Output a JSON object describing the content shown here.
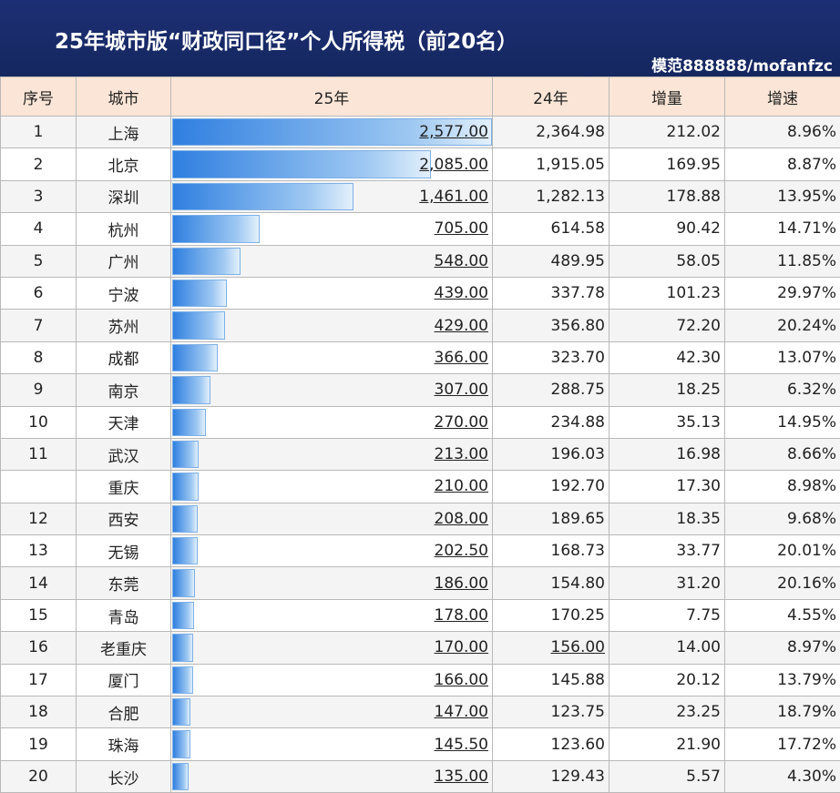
{
  "title": "25年城市版“财政同口径”个人所得税（前20名）",
  "watermark": "模范888888/mofanfzc",
  "headers": {
    "rank": "序号",
    "city": "城市",
    "y25": "25年",
    "y24": "24年",
    "inc": "增量",
    "rate": "增速"
  },
  "colors": {
    "header_band": "#1d2f74",
    "header_row": "#fbe5d6",
    "bar": "#2f7fe0"
  },
  "chart_data": {
    "type": "bar",
    "categories": [
      "上海",
      "北京",
      "深圳",
      "杭州",
      "广州",
      "宁波",
      "苏州",
      "成都",
      "南京",
      "天津",
      "武汉",
      "重庆",
      "西安",
      "无锡",
      "东莞",
      "青岛",
      "老重庆",
      "厦门",
      "合肥",
      "珠海",
      "长沙"
    ],
    "values": [
      2577.0,
      2085.0,
      1461.0,
      705.0,
      548.0,
      439.0,
      429.0,
      366.0,
      307.0,
      270.0,
      213.0,
      210.0,
      208.0,
      202.5,
      186.0,
      178.0,
      170.0,
      166.0,
      147.0,
      145.5,
      135.0
    ],
    "ylim": [
      0,
      2577
    ]
  },
  "rows": [
    {
      "rank": "1",
      "city": "上海",
      "y25": "2,577.00",
      "y24": "2,364.98",
      "inc": "212.02",
      "rate": "8.96%"
    },
    {
      "rank": "2",
      "city": "北京",
      "y25": "2,085.00",
      "y24": "1,915.05",
      "inc": "169.95",
      "rate": "8.87%"
    },
    {
      "rank": "3",
      "city": "深圳",
      "y25": "1,461.00",
      "y24": "1,282.13",
      "inc": "178.88",
      "rate": "13.95%"
    },
    {
      "rank": "4",
      "city": "杭州",
      "y25": "705.00",
      "y24": "614.58",
      "inc": "90.42",
      "rate": "14.71%"
    },
    {
      "rank": "5",
      "city": "广州",
      "y25": "548.00",
      "y24": "489.95",
      "inc": "58.05",
      "rate": "11.85%"
    },
    {
      "rank": "6",
      "city": "宁波",
      "y25": "439.00",
      "y24": "337.78",
      "inc": "101.23",
      "rate": "29.97%"
    },
    {
      "rank": "7",
      "city": "苏州",
      "y25": "429.00",
      "y24": "356.80",
      "inc": "72.20",
      "rate": "20.24%"
    },
    {
      "rank": "8",
      "city": "成都",
      "y25": "366.00",
      "y24": "323.70",
      "inc": "42.30",
      "rate": "13.07%"
    },
    {
      "rank": "9",
      "city": "南京",
      "y25": "307.00",
      "y24": "288.75",
      "inc": "18.25",
      "rate": "6.32%"
    },
    {
      "rank": "10",
      "city": "天津",
      "y25": "270.00",
      "y24": "234.88",
      "inc": "35.13",
      "rate": "14.95%"
    },
    {
      "rank": "11",
      "city": "武汉",
      "y25": "213.00",
      "y24": "196.03",
      "inc": "16.98",
      "rate": "8.66%"
    },
    {
      "rank": "",
      "city": "重庆",
      "y25": "210.00",
      "y24": "192.70",
      "inc": "17.30",
      "rate": "8.98%"
    },
    {
      "rank": "12",
      "city": "西安",
      "y25": "208.00",
      "y24": "189.65",
      "inc": "18.35",
      "rate": "9.68%"
    },
    {
      "rank": "13",
      "city": "无锡",
      "y25": "202.50",
      "y24": "168.73",
      "inc": "33.77",
      "rate": "20.01%"
    },
    {
      "rank": "14",
      "city": "东莞",
      "y25": "186.00",
      "y24": "154.80",
      "inc": "31.20",
      "rate": "20.16%"
    },
    {
      "rank": "15",
      "city": "青岛",
      "y25": "178.00",
      "y24": "170.25",
      "inc": "7.75",
      "rate": "4.55%"
    },
    {
      "rank": "16",
      "city": "老重庆",
      "y25": "170.00",
      "y24": "156.00",
      "inc": "14.00",
      "rate": "8.97%"
    },
    {
      "rank": "17",
      "city": "厦门",
      "y25": "166.00",
      "y24": "145.88",
      "inc": "20.12",
      "rate": "13.79%"
    },
    {
      "rank": "18",
      "city": "合肥",
      "y25": "147.00",
      "y24": "123.75",
      "inc": "23.25",
      "rate": "18.79%"
    },
    {
      "rank": "19",
      "city": "珠海",
      "y25": "145.50",
      "y24": "123.60",
      "inc": "21.90",
      "rate": "17.72%"
    },
    {
      "rank": "20",
      "city": "长沙",
      "y25": "135.00",
      "y24": "129.43",
      "inc": "5.57",
      "rate": "4.30%"
    }
  ]
}
